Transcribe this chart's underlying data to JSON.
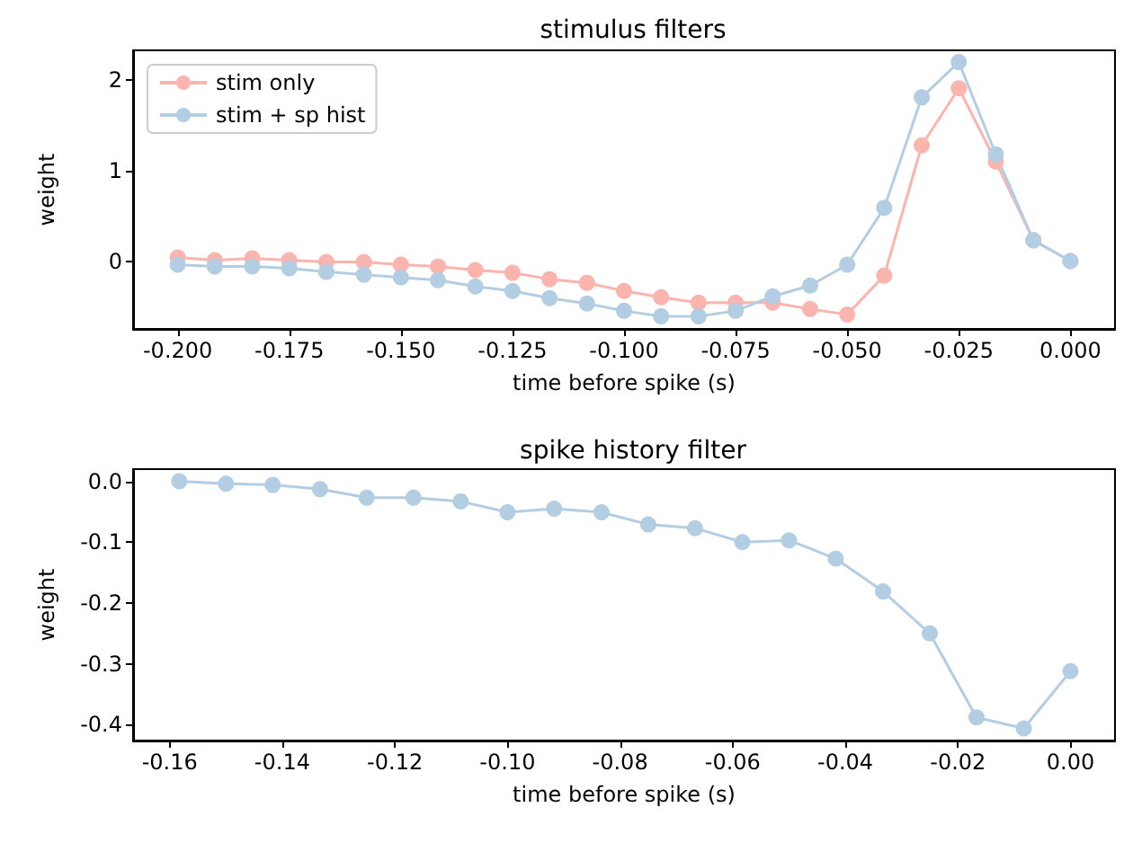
{
  "chart_data": [
    {
      "type": "line",
      "title": "stimulus filters",
      "xlabel": "time before spike (s)",
      "ylabel": "weight",
      "marker": "circle",
      "grid": false,
      "legend": "top left",
      "x": [
        -0.2,
        -0.1917,
        -0.1833,
        -0.175,
        -0.1667,
        -0.1583,
        -0.15,
        -0.1417,
        -0.1333,
        -0.125,
        -0.1167,
        -0.1083,
        -0.1,
        -0.0917,
        -0.0833,
        -0.075,
        -0.0667,
        -0.0583,
        -0.05,
        -0.0417,
        -0.0333,
        -0.025,
        -0.0167,
        -0.0083,
        0
      ],
      "series": [
        {
          "name": "stim only",
          "color": "#fbb4ae",
          "values": [
            0.04,
            0.01,
            0.03,
            0.01,
            -0.01,
            -0.01,
            -0.04,
            -0.06,
            -0.1,
            -0.13,
            -0.2,
            -0.24,
            -0.33,
            -0.4,
            -0.46,
            -0.46,
            -0.46,
            -0.53,
            -0.59,
            -0.16,
            1.28,
            1.91,
            1.1,
            0.23,
            0
          ]
        },
        {
          "name": "stim + sp hist",
          "color": "#b3cde3",
          "values": [
            -0.04,
            -0.06,
            -0.06,
            -0.08,
            -0.12,
            -0.15,
            -0.18,
            -0.21,
            -0.28,
            -0.33,
            -0.41,
            -0.47,
            -0.55,
            -0.61,
            -0.61,
            -0.55,
            -0.39,
            -0.27,
            -0.04,
            0.59,
            1.81,
            2.2,
            1.18,
            0.23,
            0
          ]
        }
      ],
      "xlim": [
        -0.21,
        0.01
      ],
      "xticks": [
        {
          "value": -0.2,
          "label": "-0.200"
        },
        {
          "value": -0.175,
          "label": "-0.175"
        },
        {
          "value": -0.15,
          "label": "-0.150"
        },
        {
          "value": -0.125,
          "label": "-0.125"
        },
        {
          "value": -0.1,
          "label": "-0.100"
        },
        {
          "value": -0.075,
          "label": "-0.075"
        },
        {
          "value": -0.05,
          "label": "-0.050"
        },
        {
          "value": -0.025,
          "label": "-0.025"
        },
        {
          "value": 0,
          "label": "0.000"
        }
      ],
      "ylim": [
        -0.75,
        2.33
      ],
      "yticks": [
        0,
        1,
        2
      ]
    },
    {
      "type": "line",
      "title": "spike history filter",
      "xlabel": "time before spike (s)",
      "ylabel": "weight",
      "marker": "circle",
      "grid": false,
      "x": [
        -0.1583,
        -0.15,
        -0.1417,
        -0.1333,
        -0.125,
        -0.1167,
        -0.1083,
        -0.1,
        -0.0917,
        -0.0833,
        -0.075,
        -0.0667,
        -0.0583,
        -0.05,
        -0.0417,
        -0.0333,
        -0.025,
        -0.0167,
        -0.0083,
        0
      ],
      "series": [
        {
          "color": "#b3cde3",
          "values": [
            0,
            -0.004,
            -0.006,
            -0.013,
            -0.027,
            -0.027,
            -0.033,
            -0.051,
            -0.045,
            -0.051,
            -0.071,
            -0.077,
            -0.1,
            -0.097,
            -0.127,
            -0.181,
            -0.25,
            -0.388,
            -0.406,
            -0.312
          ]
        }
      ],
      "xlim": [
        -0.1665,
        0.0079
      ],
      "xticks": [
        {
          "value": -0.16,
          "label": "-0.16"
        },
        {
          "value": -0.14,
          "label": "-0.14"
        },
        {
          "value": -0.12,
          "label": "-0.12"
        },
        {
          "value": -0.1,
          "label": "-0.10"
        },
        {
          "value": -0.08,
          "label": "-0.08"
        },
        {
          "value": -0.06,
          "label": "-0.06"
        },
        {
          "value": -0.04,
          "label": "-0.04"
        },
        {
          "value": -0.02,
          "label": "-0.02"
        },
        {
          "value": 0,
          "label": "0.00"
        }
      ],
      "ylim": [
        -0.426,
        0.02
      ],
      "yticks": [
        {
          "value": 0,
          "label": "0.0"
        },
        {
          "value": -0.1,
          "label": "-0.1"
        },
        {
          "value": -0.2,
          "label": "-0.2"
        },
        {
          "value": -0.3,
          "label": "-0.3"
        },
        {
          "value": -0.4,
          "label": "-0.4"
        }
      ]
    }
  ]
}
